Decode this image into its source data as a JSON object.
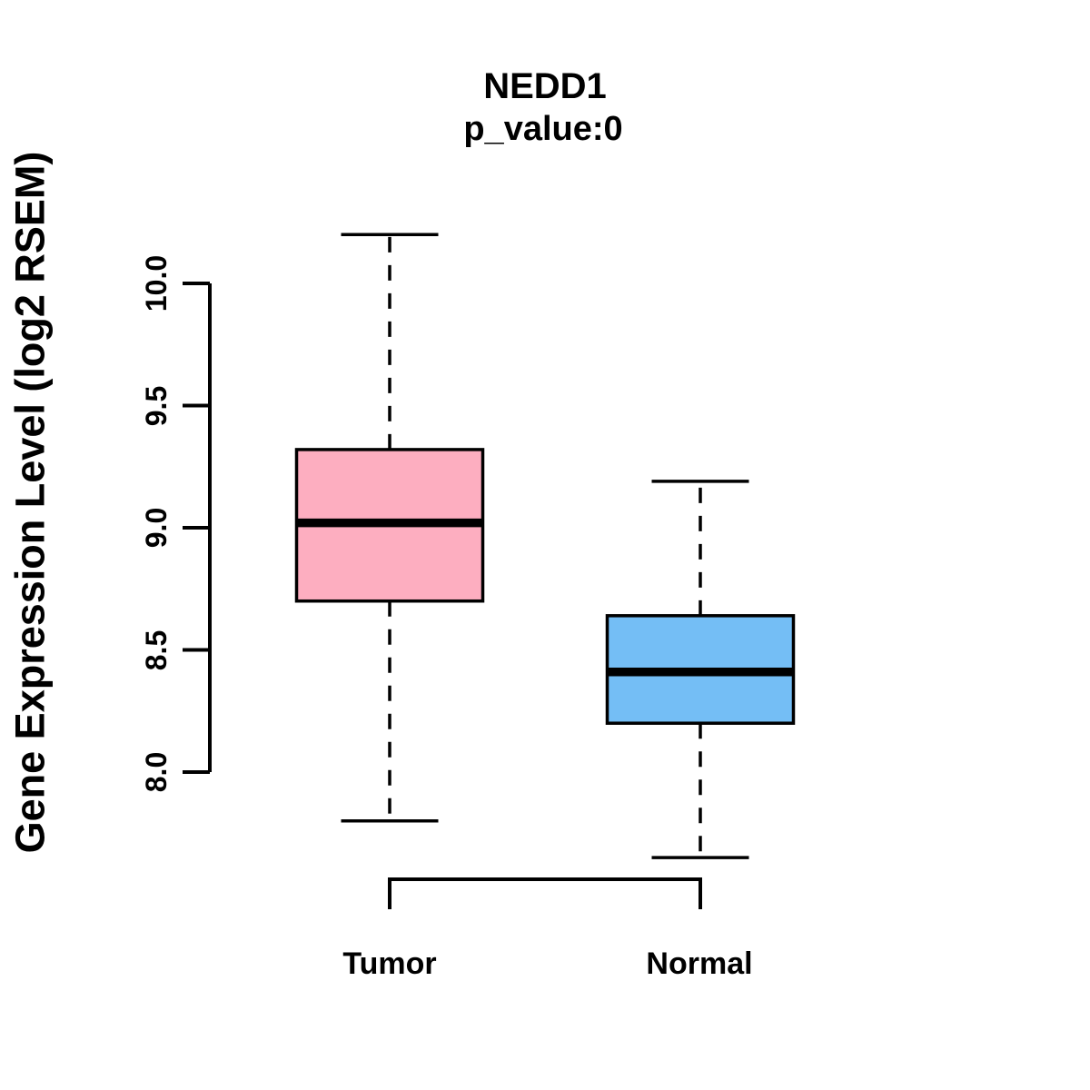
{
  "figure": {
    "background_color": "#ffffff",
    "foreground_color": "#000000"
  },
  "chart_data": {
    "type": "boxplot",
    "title": "NEDD1",
    "subtitle": "p_value:0",
    "ylabel": "Gene Expression Level (log2 RSEM)",
    "xlabel": "",
    "categories": [
      "Tumor",
      "Normal"
    ],
    "ytick_labels": [
      "8.0",
      "8.5",
      "9.0",
      "9.5",
      "10.0"
    ],
    "axis_range": [
      8.0,
      10.0
    ],
    "grid": false,
    "legend": "none",
    "whisker_style": "dashed",
    "series": [
      {
        "name": "Tumor",
        "color": "#FDAEC0",
        "border_color": "#000000",
        "whisker_low": 7.8,
        "q1": 8.7,
        "median": 9.02,
        "q3": 9.32,
        "whisker_high": 10.2
      },
      {
        "name": "Normal",
        "color": "#74BEF5",
        "border_color": "#000000",
        "whisker_low": 7.65,
        "q1": 8.2,
        "median": 8.41,
        "q3": 8.64,
        "whisker_high": 9.19
      }
    ]
  }
}
